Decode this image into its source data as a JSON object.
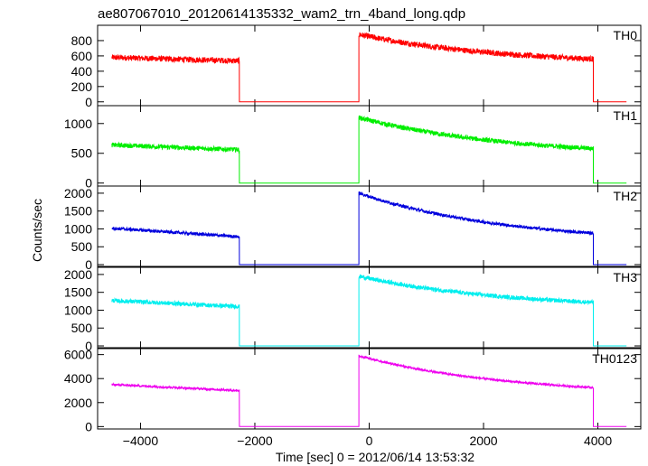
{
  "chart_data": {
    "type": "line",
    "title": "ae807067010_20120614135332_wam2_trn_4band_long.qdp",
    "xlabel": "Time [sec] 0 = 2012/06/14 13:53:32",
    "ylabel": "Counts/sec",
    "xlim": [
      -4750,
      4750
    ],
    "x_ticks": [
      -4000,
      -2000,
      0,
      2000,
      4000
    ],
    "x_tick_labels": [
      "−4000",
      "−2000",
      "0",
      "2000",
      "4000"
    ],
    "panels": [
      {
        "label": "TH0",
        "color": "#ff0000",
        "ylim": [
          -50,
          1000
        ],
        "y_ticks": [
          0,
          200,
          400,
          600,
          800
        ],
        "y_tick_labels": [
          "0",
          "200",
          "400",
          "600",
          "800"
        ],
        "data_start": -4500,
        "seg1_end": -2270,
        "seg1_start_value": 580,
        "seg1_end_value": 535,
        "gap_end": -180,
        "peak_value": 880,
        "tail_end": 3920,
        "tail_end_value": 560,
        "data_end": 4500,
        "noise": 38
      },
      {
        "label": "TH1",
        "color": "#00ee00",
        "ylim": [
          -50,
          1300
        ],
        "y_ticks": [
          0,
          500,
          1000
        ],
        "y_tick_labels": [
          "0",
          "500",
          "1000"
        ],
        "data_start": -4500,
        "seg1_end": -2270,
        "seg1_start_value": 640,
        "seg1_end_value": 560,
        "gap_end": -180,
        "peak_value": 1100,
        "tail_end": 3920,
        "tail_end_value": 580,
        "data_end": 4500,
        "noise": 40
      },
      {
        "label": "TH2",
        "color": "#0000dd",
        "ylim": [
          -50,
          2200
        ],
        "y_ticks": [
          0,
          500,
          1000,
          1500,
          2000
        ],
        "y_tick_labels": [
          "0",
          "500",
          "1000",
          "1500",
          "2000"
        ],
        "data_start": -4500,
        "seg1_end": -2270,
        "seg1_start_value": 1020,
        "seg1_end_value": 780,
        "gap_end": -180,
        "peak_value": 2000,
        "tail_end": 3920,
        "tail_end_value": 880,
        "data_end": 4500,
        "noise": 45
      },
      {
        "label": "TH3",
        "color": "#00eeee",
        "ylim": [
          -50,
          2200
        ],
        "y_ticks": [
          0,
          500,
          1000,
          1500,
          2000
        ],
        "y_tick_labels": [
          "0",
          "500",
          "1000",
          "1500",
          "2000"
        ],
        "data_start": -4500,
        "seg1_end": -2270,
        "seg1_start_value": 1270,
        "seg1_end_value": 1100,
        "gap_end": -180,
        "peak_value": 1950,
        "tail_end": 3920,
        "tail_end_value": 1220,
        "data_end": 4500,
        "noise": 60
      },
      {
        "label": "TH0123",
        "color": "#ee00ee",
        "ylim": [
          -200,
          6500
        ],
        "y_ticks": [
          0,
          2000,
          4000,
          6000
        ],
        "y_tick_labels": [
          "0",
          "2000",
          "4000",
          "6000"
        ],
        "data_start": -4500,
        "seg1_end": -2270,
        "seg1_start_value": 3500,
        "seg1_end_value": 3000,
        "gap_end": -180,
        "peak_value": 5900,
        "tail_end": 3920,
        "tail_end_value": 3250,
        "data_end": 4500,
        "noise": 90
      }
    ]
  }
}
